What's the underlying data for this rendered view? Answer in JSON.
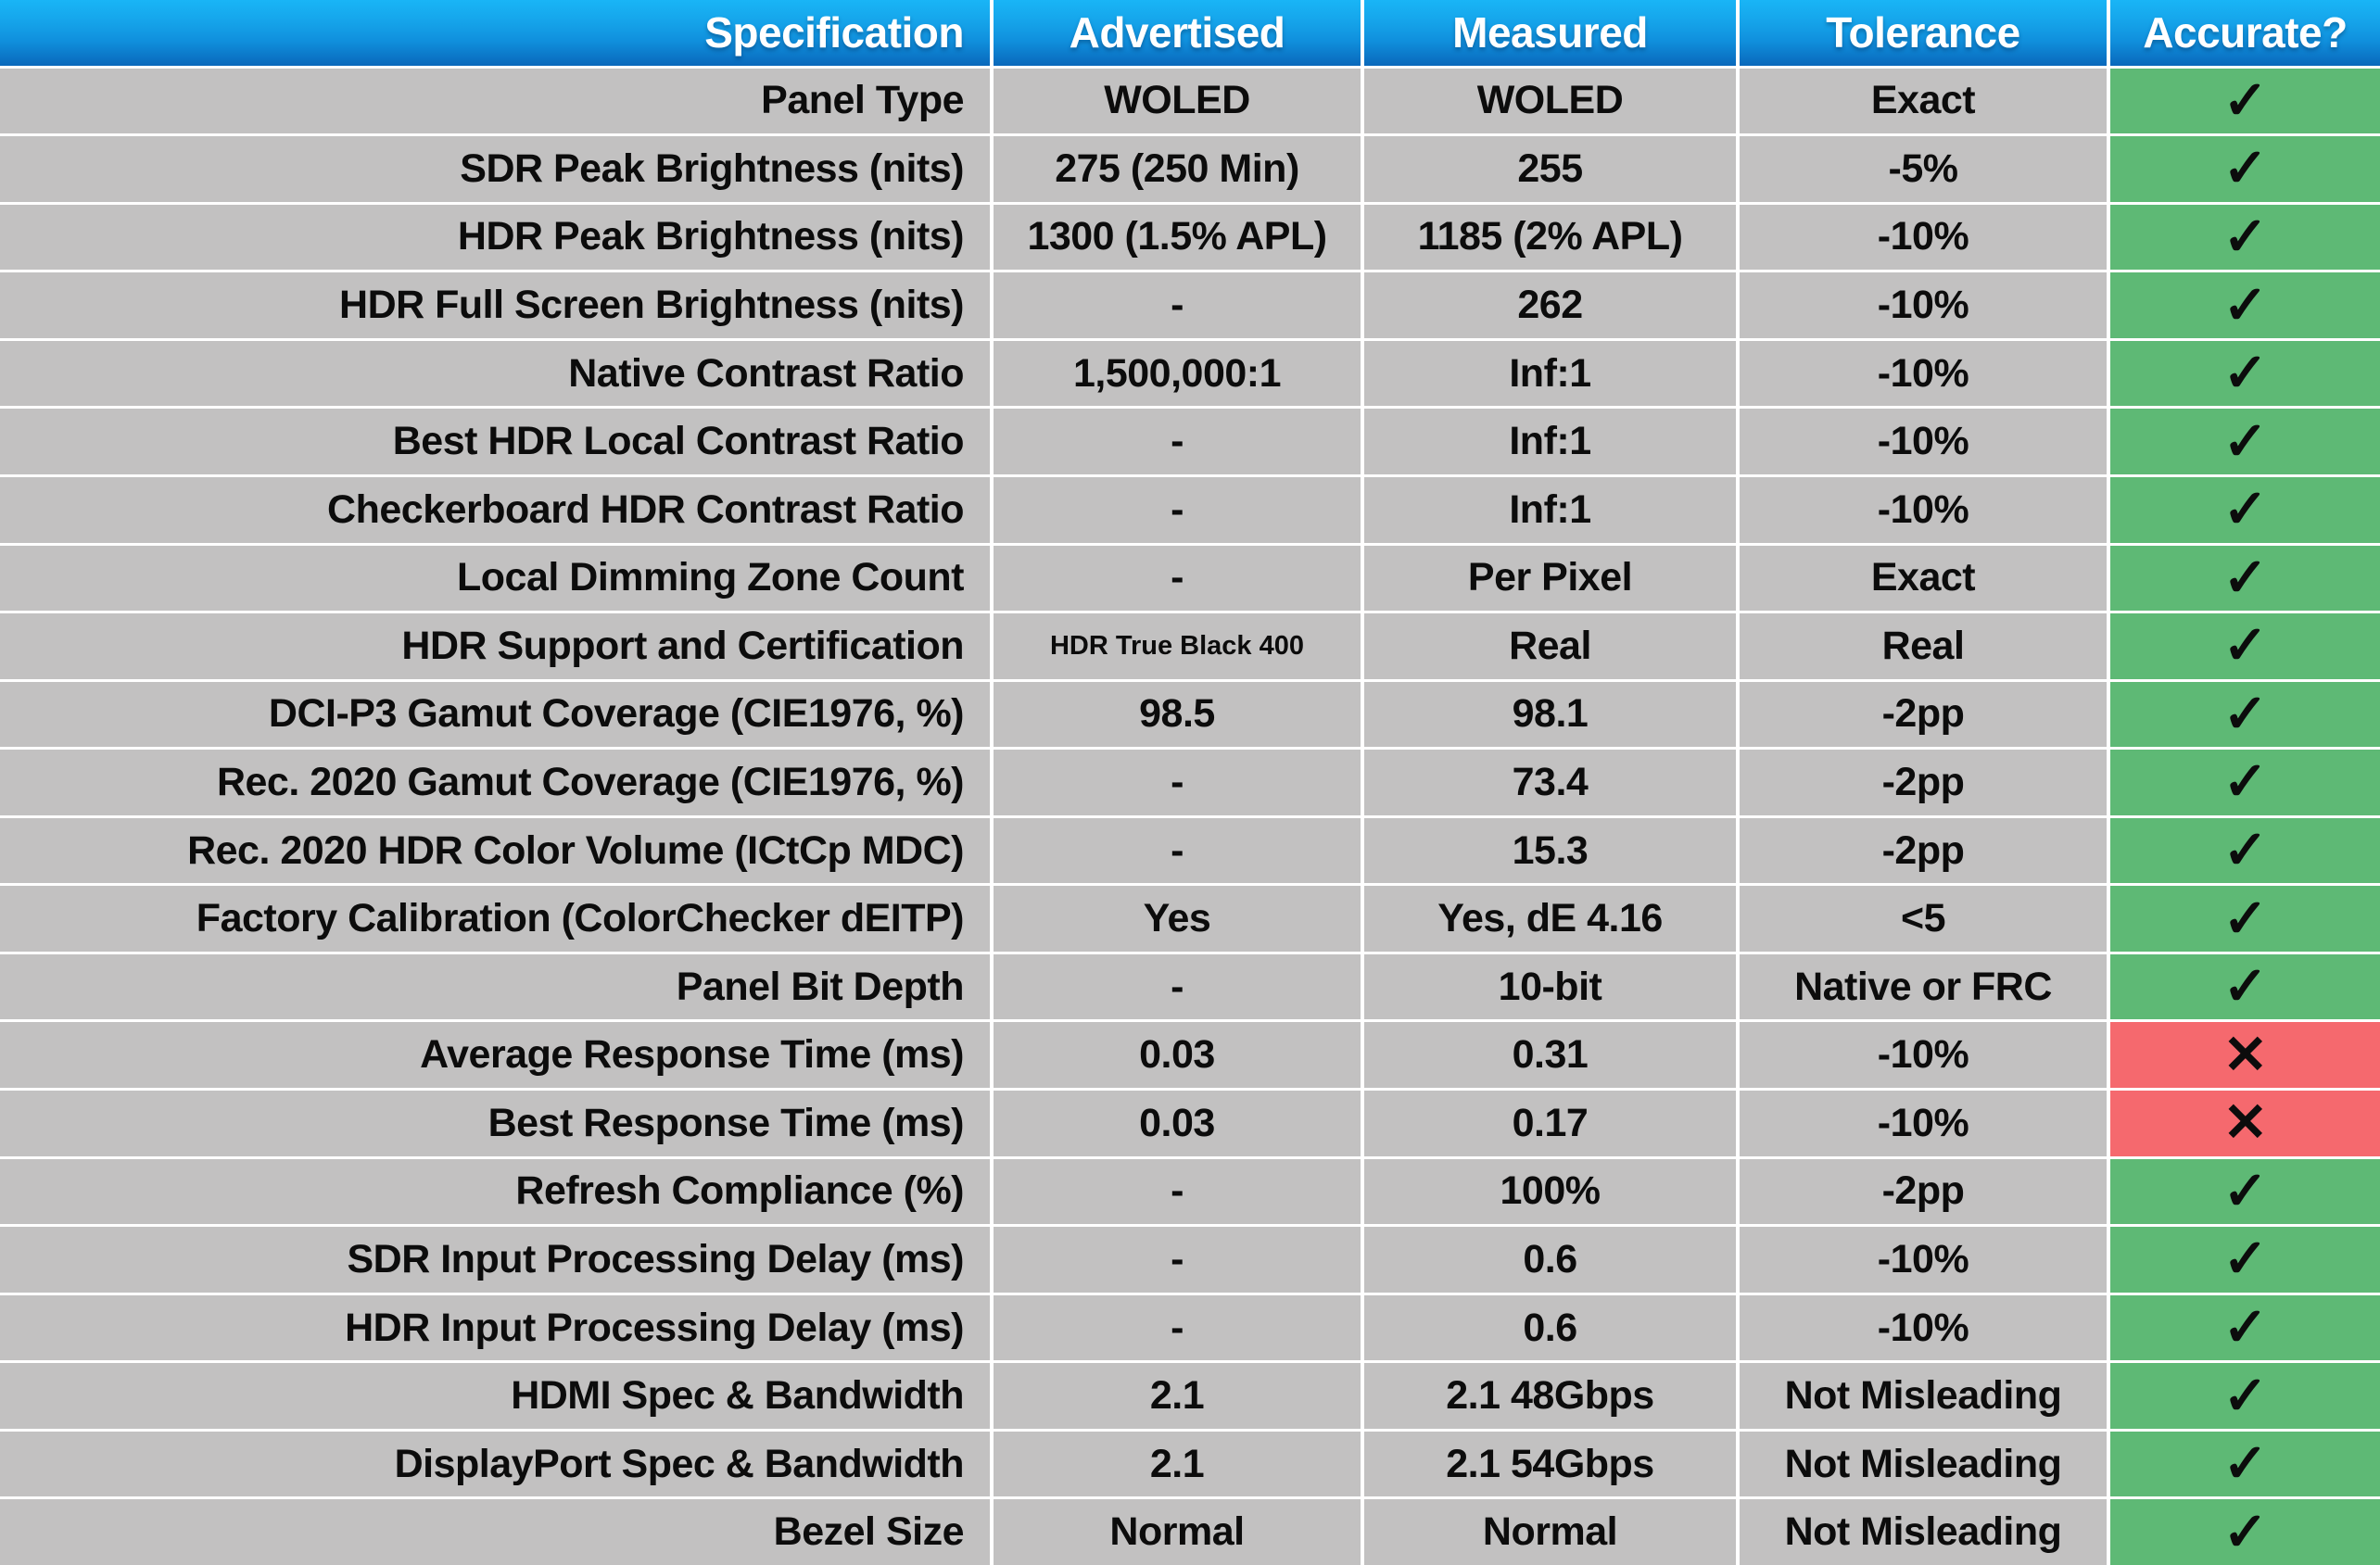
{
  "chart_data": {
    "type": "table",
    "columns": [
      "Specification",
      "Advertised",
      "Measured",
      "Tolerance",
      "Accurate?"
    ],
    "rows": [
      {
        "spec": "Panel Type",
        "advertised": "WOLED",
        "measured": "WOLED",
        "tolerance": "Exact",
        "accurate": true
      },
      {
        "spec": "SDR Peak Brightness (nits)",
        "advertised": "275 (250 Min)",
        "measured": "255",
        "tolerance": "-5%",
        "accurate": true
      },
      {
        "spec": "HDR Peak Brightness (nits)",
        "advertised": "1300 (1.5% APL)",
        "measured": "1185 (2% APL)",
        "tolerance": "-10%",
        "accurate": true
      },
      {
        "spec": "HDR Full Screen Brightness (nits)",
        "advertised": "-",
        "measured": "262",
        "tolerance": "-10%",
        "accurate": true
      },
      {
        "spec": "Native Contrast Ratio",
        "advertised": "1,500,000:1",
        "measured": "Inf:1",
        "tolerance": "-10%",
        "accurate": true
      },
      {
        "spec": "Best HDR Local Contrast Ratio",
        "advertised": "-",
        "measured": "Inf:1",
        "tolerance": "-10%",
        "accurate": true
      },
      {
        "spec": "Checkerboard HDR Contrast Ratio",
        "advertised": "-",
        "measured": "Inf:1",
        "tolerance": "-10%",
        "accurate": true
      },
      {
        "spec": "Local Dimming Zone Count",
        "advertised": "-",
        "measured": "Per Pixel",
        "tolerance": "Exact",
        "accurate": true
      },
      {
        "spec": "HDR Support and Certification",
        "advertised": "HDR True Black 400",
        "advertised_small": true,
        "measured": "Real",
        "tolerance": "Real",
        "accurate": true
      },
      {
        "spec": "DCI-P3 Gamut Coverage (CIE1976, %)",
        "advertised": "98.5",
        "measured": "98.1",
        "tolerance": "-2pp",
        "accurate": true
      },
      {
        "spec": "Rec. 2020 Gamut Coverage (CIE1976, %)",
        "advertised": "-",
        "measured": "73.4",
        "tolerance": "-2pp",
        "accurate": true
      },
      {
        "spec": "Rec. 2020 HDR Color Volume (ICtCp MDC)",
        "advertised": "-",
        "measured": "15.3",
        "tolerance": "-2pp",
        "accurate": true
      },
      {
        "spec": "Factory Calibration (ColorChecker dEITP)",
        "advertised": "Yes",
        "measured": "Yes, dE 4.16",
        "tolerance": "<5",
        "accurate": true
      },
      {
        "spec": "Panel Bit Depth",
        "advertised": "-",
        "measured": "10-bit",
        "tolerance": "Native or FRC",
        "accurate": true
      },
      {
        "spec": "Average Response Time (ms)",
        "advertised": "0.03",
        "measured": "0.31",
        "tolerance": "-10%",
        "accurate": false
      },
      {
        "spec": "Best Response Time (ms)",
        "advertised": "0.03",
        "measured": "0.17",
        "tolerance": "-10%",
        "accurate": false
      },
      {
        "spec": "Refresh Compliance (%)",
        "advertised": "-",
        "measured": "100%",
        "tolerance": "-2pp",
        "accurate": true
      },
      {
        "spec": "SDR Input Processing Delay (ms)",
        "advertised": "-",
        "measured": "0.6",
        "tolerance": "-10%",
        "accurate": true
      },
      {
        "spec": "HDR Input Processing Delay (ms)",
        "advertised": "-",
        "measured": "0.6",
        "tolerance": "-10%",
        "accurate": true
      },
      {
        "spec": "HDMI Spec & Bandwidth",
        "advertised": "2.1",
        "measured": "2.1 48Gbps",
        "tolerance": "Not Misleading",
        "accurate": true
      },
      {
        "spec": "DisplayPort Spec & Bandwidth",
        "advertised": "2.1",
        "measured": "2.1 54Gbps",
        "tolerance": "Not Misleading",
        "accurate": true
      },
      {
        "spec": "Bezel Size",
        "advertised": "Normal",
        "measured": "Normal",
        "tolerance": "Not Misleading",
        "accurate": true
      }
    ],
    "marks": {
      "pass": "✓",
      "fail": "✕"
    },
    "layout_hints": {
      "grid": "white separators between all cells",
      "spec_column_align": "right",
      "value_columns_align": "center"
    },
    "colors": {
      "row_gray": "#c2c1c1",
      "pass_green": "#5eb975",
      "fail_red": "#f5696e",
      "separator_white": "#ffffff",
      "text_dark": "#0c0c0c",
      "header_blue_top": "#19b5f6",
      "header_blue_mid": "#1090dd",
      "header_blue_bottom": "#0968bb",
      "header_text": "#ffffff"
    }
  }
}
